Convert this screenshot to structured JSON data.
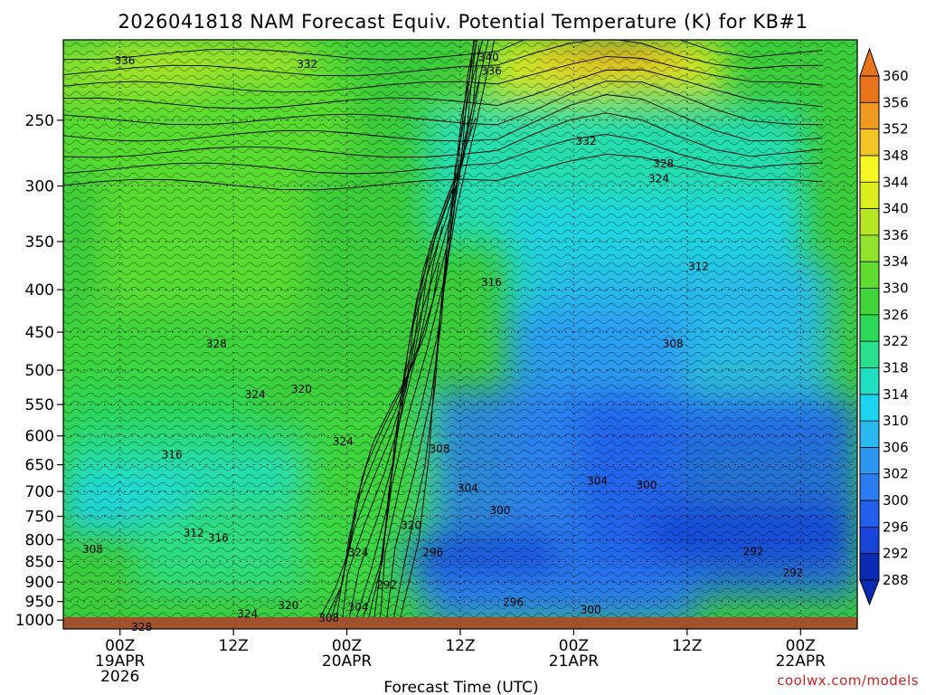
{
  "chart_data": {
    "type": "heatmap",
    "title": "2026041818 NAM Forecast Equiv. Potential Temperature (K) for KB#1",
    "xlabel": "Forecast Time (UTC)",
    "ylabel": "",
    "credit": "coolwx.com/models",
    "y_ticks": [
      250,
      300,
      350,
      400,
      450,
      500,
      550,
      600,
      650,
      700,
      750,
      800,
      850,
      900,
      950,
      1000
    ],
    "y_scale": "log-pressure",
    "ylim": [
      200,
      1025
    ],
    "x_ticks": [
      {
        "hour": 0,
        "line1": "00Z",
        "line2": "19APR",
        "line3": "2026"
      },
      {
        "hour": 12,
        "line1": "12Z",
        "line2": "",
        "line3": ""
      },
      {
        "hour": 24,
        "line1": "00Z",
        "line2": "20APR",
        "line3": ""
      },
      {
        "hour": 36,
        "line1": "12Z",
        "line2": "",
        "line3": ""
      },
      {
        "hour": 48,
        "line1": "00Z",
        "line2": "21APR",
        "line3": ""
      },
      {
        "hour": 60,
        "line1": "12Z",
        "line2": "",
        "line3": ""
      },
      {
        "hour": 72,
        "line1": "00Z",
        "line2": "22APR",
        "line3": ""
      }
    ],
    "xlim": [
      -6,
      78
    ],
    "colorbar": {
      "levels": [
        288,
        292,
        296,
        300,
        302,
        306,
        310,
        314,
        318,
        322,
        326,
        330,
        334,
        336,
        340,
        344,
        348,
        352,
        356,
        360
      ],
      "colors": [
        "#0a2ab4",
        "#1644d8",
        "#2060ec",
        "#2a7cf0",
        "#2c98f2",
        "#2cb8f0",
        "#1ad4f0",
        "#20e0c4",
        "#28e08c",
        "#2cd858",
        "#40d63c",
        "#60dc30",
        "#90e22a",
        "#b6e624",
        "#dcee1e",
        "#f6f622",
        "#f2c424",
        "#ee9a20",
        "#ea741c"
      ]
    },
    "contour_labels": [
      {
        "v": "336",
        "hour": 0.5,
        "p": 212
      },
      {
        "v": "332",
        "hour": 19.8,
        "p": 214
      },
      {
        "v": "340",
        "hour": 39,
        "p": 210
      },
      {
        "v": "336",
        "hour": 39.3,
        "p": 218
      },
      {
        "v": "332",
        "hour": 49.3,
        "p": 265
      },
      {
        "v": "328",
        "hour": 57.5,
        "p": 282
      },
      {
        "v": "324",
        "hour": 57,
        "p": 294
      },
      {
        "v": "316",
        "hour": 39.3,
        "p": 392
      },
      {
        "v": "312",
        "hour": 61.2,
        "p": 375
      },
      {
        "v": "308",
        "hour": 58.5,
        "p": 465
      },
      {
        "v": "328",
        "hour": 10.2,
        "p": 465
      },
      {
        "v": "324",
        "hour": 14.3,
        "p": 535
      },
      {
        "v": "320",
        "hour": 19.2,
        "p": 527
      },
      {
        "v": "324",
        "hour": 23.6,
        "p": 610
      },
      {
        "v": "316",
        "hour": 5.5,
        "p": 632
      },
      {
        "v": "308",
        "hour": 33.8,
        "p": 622
      },
      {
        "v": "304",
        "hour": 50.5,
        "p": 680
      },
      {
        "v": "300",
        "hour": 55.7,
        "p": 688
      },
      {
        "v": "304",
        "hour": 36.8,
        "p": 694
      },
      {
        "v": "300",
        "hour": 40.2,
        "p": 738
      },
      {
        "v": "320",
        "hour": 30.8,
        "p": 769
      },
      {
        "v": "312",
        "hour": 7.8,
        "p": 786
      },
      {
        "v": "316",
        "hour": 10.4,
        "p": 796
      },
      {
        "v": "308",
        "hour": -2.9,
        "p": 822
      },
      {
        "v": "324",
        "hour": 25.2,
        "p": 829
      },
      {
        "v": "296",
        "hour": 33.1,
        "p": 829
      },
      {
        "v": "292",
        "hour": 67,
        "p": 827
      },
      {
        "v": "292",
        "hour": 28.2,
        "p": 908
      },
      {
        "v": "292",
        "hour": 71.2,
        "p": 877
      },
      {
        "v": "296",
        "hour": 41.6,
        "p": 952
      },
      {
        "v": "320",
        "hour": 17.8,
        "p": 960
      },
      {
        "v": "304",
        "hour": 25.2,
        "p": 965
      },
      {
        "v": "324",
        "hour": 13.5,
        "p": 983
      },
      {
        "v": "300",
        "hour": 49.8,
        "p": 972
      },
      {
        "v": "308",
        "hour": 22.1,
        "p": 994
      },
      {
        "v": "328",
        "hour": 2.3,
        "p": 1020
      }
    ]
  }
}
